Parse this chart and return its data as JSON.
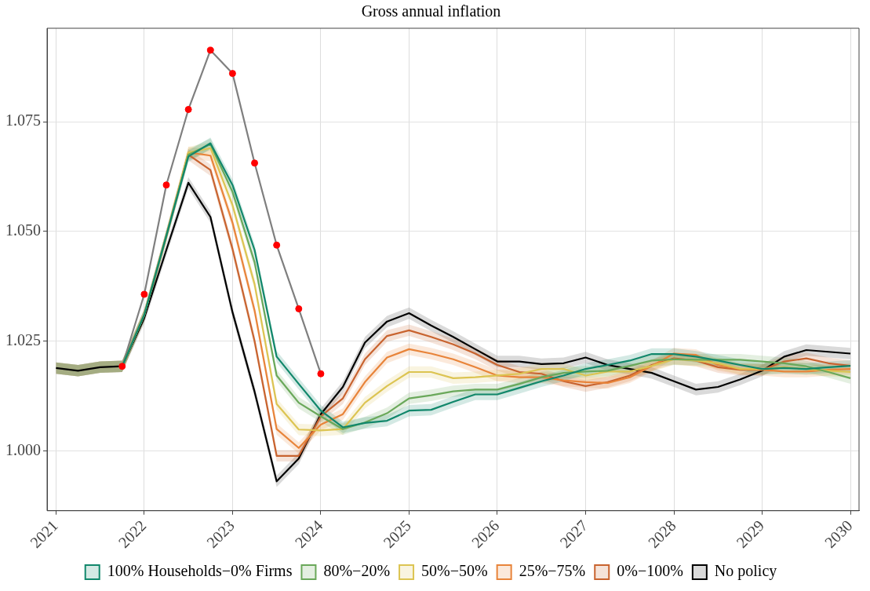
{
  "chart_data": {
    "type": "line",
    "title": "Gross annual inflation",
    "x": [
      "2021-01",
      "2021-04",
      "2021-07",
      "2021-10",
      "2022-01",
      "2022-04",
      "2022-07",
      "2022-10",
      "2023-01",
      "2023-04",
      "2023-07",
      "2023-10",
      "2024-01",
      "2024-04",
      "2024-07",
      "2024-10",
      "2025-01",
      "2025-04",
      "2025-07",
      "2025-10",
      "2026-01",
      "2026-04",
      "2026-07",
      "2026-10",
      "2027-01",
      "2027-04",
      "2027-07",
      "2027-10",
      "2028-01",
      "2028-04",
      "2028-07",
      "2028-10",
      "2029-01",
      "2029-04",
      "2029-07",
      "2029-10",
      "2030-01"
    ],
    "xlim": [
      "2020-11-25",
      "2030-02-06"
    ],
    "xticks": [
      "2021",
      "2022",
      "2023",
      "2024",
      "2025",
      "2026",
      "2027",
      "2028",
      "2029",
      "2030"
    ],
    "ylim": [
      0.9864,
      1.0963
    ],
    "yticks": [
      {
        "value": 1,
        "label": "1.000"
      },
      {
        "value": 1.025,
        "label": "1.025"
      },
      {
        "value": 1.05,
        "label": "1.050"
      },
      {
        "value": 1.075,
        "label": "1.075"
      }
    ],
    "grid": true,
    "legend": "bottom",
    "marker": "none",
    "series": [
      {
        "name": "100% Households−0% Firms",
        "type": "line",
        "color": "#11876b",
        "values": [
          null,
          null,
          null,
          1.0193,
          1.031,
          1.049,
          1.0671,
          1.0701,
          1.0606,
          1.0458,
          1.0215,
          1.0153,
          1.0092,
          1.0054,
          1.0064,
          1.0069,
          1.0092,
          1.0094,
          1.0112,
          1.0129,
          1.0129,
          1.0144,
          1.0159,
          1.0172,
          1.0187,
          1.0196,
          1.0206,
          1.0221,
          1.0221,
          1.0215,
          1.0206,
          1.0196,
          1.0187,
          1.0189,
          1.0187,
          1.0191,
          1.0194
        ],
        "lower": [
          1.0176,
          1.017,
          1.0178,
          1.018,
          1.0297,
          1.0477,
          1.0658,
          1.0688,
          1.0593,
          1.0445,
          1.0202,
          1.014,
          1.0079,
          1.0041,
          1.0051,
          1.0056,
          1.0079,
          1.0081,
          1.0099,
          1.0116,
          1.0116,
          1.0131,
          1.0146,
          1.0159,
          1.0174,
          1.0183,
          1.0193,
          1.0208,
          1.0208,
          1.0202,
          1.0193,
          1.0183,
          1.0174,
          1.0176,
          1.0174,
          1.0178,
          1.0181
        ],
        "upper": [
          1.0202,
          1.0196,
          1.0204,
          1.0206,
          1.0323,
          1.0503,
          1.0684,
          1.0714,
          1.0619,
          1.0471,
          1.0228,
          1.0166,
          1.0105,
          1.0067,
          1.0077,
          1.0082,
          1.0105,
          1.0107,
          1.0125,
          1.0142,
          1.0142,
          1.0157,
          1.0172,
          1.0185,
          1.02,
          1.0209,
          1.0219,
          1.0234,
          1.0234,
          1.0228,
          1.0219,
          1.0209,
          1.02,
          1.0202,
          1.02,
          1.0204,
          1.0207
        ]
      },
      {
        "name": "80%−20%",
        "type": "line",
        "color": "#6aa85a",
        "values": [
          null,
          null,
          null,
          1.0193,
          1.031,
          1.049,
          1.0675,
          1.0699,
          1.059,
          1.043,
          1.0172,
          1.011,
          1.0079,
          1.005,
          1.0065,
          1.0086,
          1.012,
          1.0127,
          1.0136,
          1.014,
          1.014,
          1.0153,
          1.0168,
          1.0178,
          1.0181,
          1.0183,
          1.0194,
          1.0206,
          1.0209,
          1.0208,
          1.0208,
          1.0208,
          1.0204,
          1.02,
          1.0193,
          1.018,
          1.0166
        ],
        "lower": [
          1.0176,
          1.017,
          1.0178,
          1.018,
          1.0297,
          1.0477,
          1.0662,
          1.0686,
          1.0577,
          1.0417,
          1.0159,
          1.0097,
          1.0066,
          1.0037,
          1.0052,
          1.0073,
          1.0107,
          1.0114,
          1.0123,
          1.0127,
          1.0127,
          1.014,
          1.0155,
          1.0165,
          1.0168,
          1.017,
          1.0181,
          1.0193,
          1.0196,
          1.0195,
          1.0195,
          1.0195,
          1.0191,
          1.0187,
          1.018,
          1.0167,
          1.0153
        ],
        "upper": [
          1.0202,
          1.0196,
          1.0204,
          1.0206,
          1.0323,
          1.0503,
          1.0688,
          1.0712,
          1.0603,
          1.0443,
          1.0185,
          1.0123,
          1.0092,
          1.0063,
          1.0078,
          1.0099,
          1.0133,
          1.014,
          1.0149,
          1.0153,
          1.0153,
          1.0166,
          1.0181,
          1.0191,
          1.0194,
          1.0196,
          1.0207,
          1.0219,
          1.0222,
          1.0221,
          1.0221,
          1.0221,
          1.0217,
          1.0213,
          1.0206,
          1.0193,
          1.0179
        ]
      },
      {
        "name": "50%−50%",
        "type": "line",
        "color": "#dcc452",
        "values": [
          null,
          null,
          null,
          1.0193,
          1.031,
          1.049,
          1.068,
          1.069,
          1.056,
          1.038,
          1.0107,
          1.0049,
          1.0047,
          1.005,
          1.011,
          1.0148,
          1.018,
          1.018,
          1.0166,
          1.0168,
          1.0172,
          1.0176,
          1.0187,
          1.0187,
          1.0172,
          1.0181,
          1.0181,
          1.0194,
          1.0209,
          1.0206,
          1.02,
          1.0187,
          1.0187,
          1.0191,
          1.0187,
          1.0183,
          1.018
        ],
        "lower": [
          1.0176,
          1.017,
          1.0178,
          1.018,
          1.0297,
          1.0477,
          1.0667,
          1.0677,
          1.0547,
          1.0367,
          1.0094,
          1.0036,
          1.0034,
          1.0037,
          1.0097,
          1.0135,
          1.0167,
          1.0167,
          1.0153,
          1.0155,
          1.0159,
          1.0163,
          1.0174,
          1.0174,
          1.0159,
          1.0168,
          1.0168,
          1.0181,
          1.0196,
          1.0193,
          1.0187,
          1.0174,
          1.0174,
          1.0178,
          1.0174,
          1.017,
          1.0167
        ],
        "upper": [
          1.0202,
          1.0196,
          1.0204,
          1.0206,
          1.0323,
          1.0503,
          1.0693,
          1.0703,
          1.0573,
          1.0393,
          1.012,
          1.0062,
          1.006,
          1.0063,
          1.0123,
          1.0161,
          1.0193,
          1.0193,
          1.0179,
          1.0181,
          1.0185,
          1.0189,
          1.02,
          1.02,
          1.0185,
          1.0194,
          1.0194,
          1.0207,
          1.0222,
          1.0219,
          1.0213,
          1.02,
          1.02,
          1.0204,
          1.02,
          1.0196,
          1.0193
        ]
      },
      {
        "name": "25%−75%",
        "type": "line",
        "color": "#e8843a",
        "values": [
          null,
          null,
          null,
          1.0193,
          1.031,
          1.049,
          1.068,
          1.0673,
          1.052,
          1.032,
          1.005,
          1.0007,
          1.006,
          1.0084,
          1.0157,
          1.0213,
          1.0232,
          1.0222,
          1.0209,
          1.0191,
          1.0172,
          1.0168,
          1.0168,
          1.0161,
          1.0157,
          1.0155,
          1.0168,
          1.0194,
          1.0222,
          1.0219,
          1.0196,
          1.0187,
          1.0185,
          1.0181,
          1.0181,
          1.0185,
          1.0187
        ],
        "lower": [
          1.0176,
          1.017,
          1.0178,
          1.018,
          1.0297,
          1.0477,
          1.0667,
          1.066,
          1.0507,
          1.0307,
          1.0037,
          0.9994,
          1.0047,
          1.0071,
          1.0144,
          1.02,
          1.0219,
          1.0209,
          1.0196,
          1.0178,
          1.0159,
          1.0155,
          1.0155,
          1.0148,
          1.0144,
          1.0142,
          1.0155,
          1.0181,
          1.0209,
          1.0206,
          1.0183,
          1.0174,
          1.0172,
          1.0168,
          1.0168,
          1.0172,
          1.0174
        ],
        "upper": [
          1.0202,
          1.0196,
          1.0204,
          1.0206,
          1.0323,
          1.0503,
          1.0693,
          1.0686,
          1.0533,
          1.0333,
          1.0063,
          1.002,
          1.0073,
          1.0097,
          1.017,
          1.0226,
          1.0245,
          1.0235,
          1.0222,
          1.0204,
          1.0185,
          1.0181,
          1.0181,
          1.0174,
          1.017,
          1.0168,
          1.0181,
          1.0207,
          1.0235,
          1.0232,
          1.0209,
          1.02,
          1.0198,
          1.0194,
          1.0194,
          1.0198,
          1.02
        ]
      },
      {
        "name": "0%−100%",
        "type": "line",
        "color": "#c8632f",
        "values": [
          null,
          null,
          null,
          1.0193,
          1.031,
          1.049,
          1.0675,
          1.064,
          1.046,
          1.025,
          0.9989,
          0.9989,
          1.0079,
          1.012,
          1.0209,
          1.0262,
          1.0275,
          1.026,
          1.0243,
          1.0222,
          1.0196,
          1.018,
          1.0176,
          1.0159,
          1.0148,
          1.0157,
          1.0172,
          1.0196,
          1.0211,
          1.0206,
          1.0191,
          1.0185,
          1.0185,
          1.0204,
          1.0211,
          1.02,
          1.0194
        ],
        "lower": [
          1.0176,
          1.017,
          1.0178,
          1.018,
          1.0297,
          1.0477,
          1.0662,
          1.0627,
          1.0447,
          1.0237,
          0.9976,
          0.9976,
          1.0066,
          1.0107,
          1.0196,
          1.0249,
          1.0262,
          1.0247,
          1.023,
          1.0209,
          1.0183,
          1.0167,
          1.0163,
          1.0146,
          1.0135,
          1.0144,
          1.0159,
          1.0183,
          1.0198,
          1.0193,
          1.0178,
          1.0172,
          1.0172,
          1.0191,
          1.0198,
          1.0187,
          1.0181
        ],
        "upper": [
          1.0202,
          1.0196,
          1.0204,
          1.0206,
          1.0323,
          1.0503,
          1.0688,
          1.0653,
          1.0473,
          1.0263,
          1.0002,
          1.0002,
          1.0092,
          1.0133,
          1.0222,
          1.0275,
          1.0288,
          1.0273,
          1.0256,
          1.0235,
          1.0209,
          1.0193,
          1.0189,
          1.0172,
          1.0161,
          1.017,
          1.0185,
          1.0209,
          1.0224,
          1.0219,
          1.0204,
          1.0198,
          1.0198,
          1.0217,
          1.0224,
          1.0213,
          1.0207
        ]
      },
      {
        "name": "No policy",
        "type": "line",
        "color": "#000000",
        "values": [
          1.0189,
          1.0183,
          1.0191,
          1.0193,
          1.0303,
          1.0458,
          1.0611,
          1.0533,
          1.0316,
          1.0135,
          0.9931,
          0.9983,
          1.0084,
          1.0146,
          1.0247,
          1.0295,
          1.0314,
          1.0286,
          1.026,
          1.0232,
          1.0204,
          1.0204,
          1.0198,
          1.02,
          1.0213,
          1.0196,
          1.0187,
          1.0178,
          1.0159,
          1.014,
          1.0146,
          1.0163,
          1.0183,
          1.0215,
          1.023,
          1.0226,
          1.0222
        ],
        "lower": [
          1.0176,
          1.017,
          1.0178,
          1.018,
          1.029,
          1.0445,
          1.0598,
          1.052,
          1.0303,
          1.0122,
          0.9918,
          0.997,
          1.0071,
          1.0133,
          1.0234,
          1.0282,
          1.0301,
          1.0273,
          1.0247,
          1.0219,
          1.0191,
          1.0191,
          1.0185,
          1.0187,
          1.02,
          1.0183,
          1.0174,
          1.0165,
          1.0146,
          1.0127,
          1.0133,
          1.015,
          1.017,
          1.0202,
          1.0217,
          1.0213,
          1.0209
        ],
        "upper": [
          1.0202,
          1.0196,
          1.0204,
          1.0206,
          1.0316,
          1.0471,
          1.0624,
          1.0546,
          1.0329,
          1.0148,
          0.9944,
          0.9996,
          1.0097,
          1.0159,
          1.026,
          1.0308,
          1.0327,
          1.0299,
          1.0273,
          1.0245,
          1.0217,
          1.0217,
          1.0211,
          1.0213,
          1.0226,
          1.0209,
          1.02,
          1.0191,
          1.0172,
          1.0153,
          1.0159,
          1.0176,
          1.0196,
          1.0228,
          1.0243,
          1.0239,
          1.0235
        ]
      },
      {
        "type": "line",
        "color": "#7f7f7f",
        "x": [
          "2021-10",
          "2022-01",
          "2022-04",
          "2022-07",
          "2022-10",
          "2023-01",
          "2023-04",
          "2023-07",
          "2023-10",
          "2024-01"
        ],
        "values": [
          1.0193,
          1.0357,
          1.0606,
          1.0778,
          1.0913,
          1.086,
          1.0656,
          1.0469,
          1.0324,
          1.0176
        ]
      },
      {
        "type": "scatter",
        "marker": "circle",
        "color": "#ff0000",
        "x": [
          "2021-10",
          "2022-01",
          "2022-04",
          "2022-07",
          "2022-10",
          "2023-01",
          "2023-04",
          "2023-07",
          "2023-10",
          "2024-01"
        ],
        "values": [
          1.0193,
          1.0357,
          1.0606,
          1.0778,
          1.0913,
          1.086,
          1.0656,
          1.0469,
          1.0324,
          1.0176
        ]
      }
    ]
  }
}
